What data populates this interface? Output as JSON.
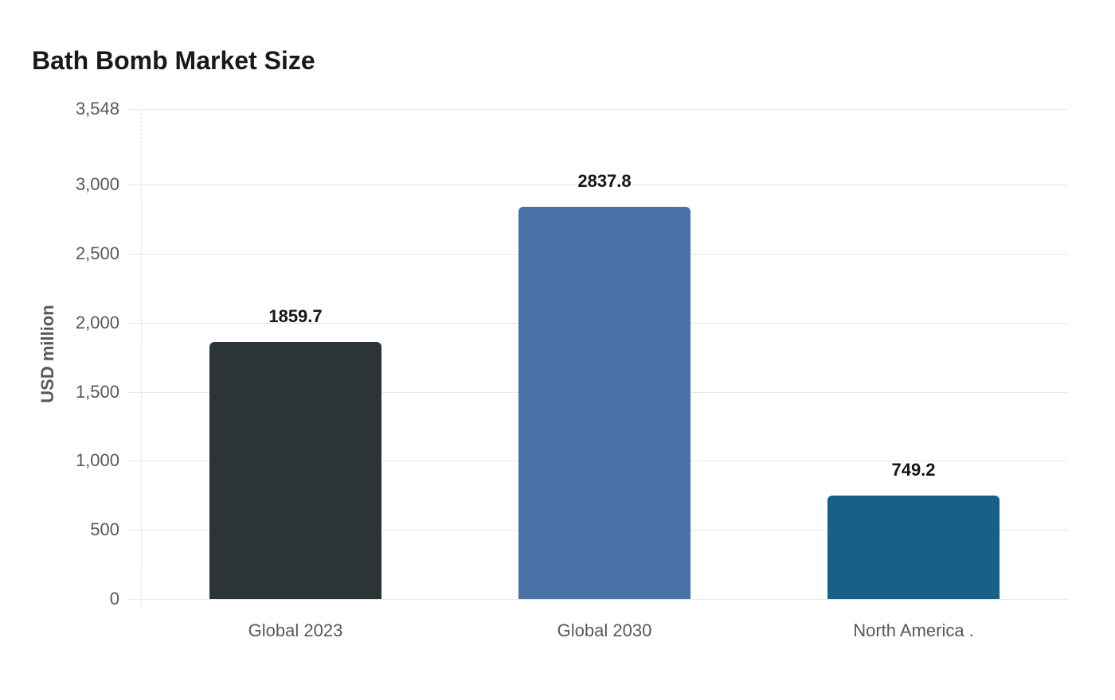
{
  "chart_data": {
    "type": "bar",
    "title": "Bath Bomb Market Size",
    "ylabel": "USD million",
    "xlabel": "",
    "categories": [
      "Global 2023",
      "Global 2030",
      "North America ."
    ],
    "values": [
      1859.7,
      2837.8,
      749.2
    ],
    "value_labels": [
      "1859.7",
      "2837.8",
      "749.2"
    ],
    "bar_colors": [
      "#2c3437",
      "#4a72a9",
      "#176188"
    ],
    "ylim": [
      0,
      3548
    ],
    "yticks": [
      {
        "value": 0,
        "label": "0"
      },
      {
        "value": 500,
        "label": "500"
      },
      {
        "value": 1000,
        "label": "1,000"
      },
      {
        "value": 1500,
        "label": "1,500"
      },
      {
        "value": 2000,
        "label": "2,000"
      },
      {
        "value": 2500,
        "label": "2,500"
      },
      {
        "value": 3000,
        "label": "3,000"
      },
      {
        "value": 3548,
        "label": "3,548"
      }
    ],
    "grid": true,
    "legend_position": "none",
    "colors": {
      "background": "#ffffff",
      "grid": "#e7e7e7",
      "axis_dash": "#e0e0e0",
      "title_text": "#17191c",
      "value_text": "#141619",
      "tick_text": "#535960",
      "y_axis_title_text": "#55595e"
    }
  }
}
